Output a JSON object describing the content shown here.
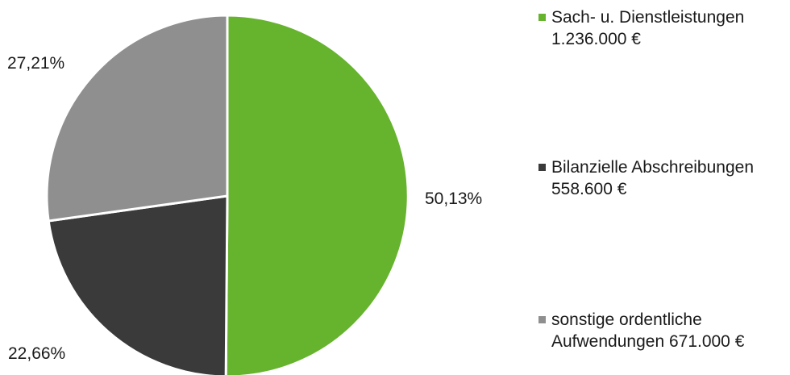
{
  "chart_data": {
    "type": "pie",
    "title": "",
    "start_angle_deg": 0,
    "direction": "clockwise",
    "colors": {
      "slice_1": "#66b32e",
      "slice_2": "#3a3a3a",
      "slice_3": "#8f8f8f",
      "separator": "#ffffff"
    },
    "slices": [
      {
        "label_line_1": "Sach- u. Dienstleistungen",
        "label_line_2": "1.236.000 €",
        "value": 1236000,
        "percent": 50.13,
        "percent_text": "50,13%"
      },
      {
        "label_line_1": "Bilanzielle Abschreibungen",
        "label_line_2": "558.600 €",
        "value": 558600,
        "percent": 22.66,
        "percent_text": "22,66%"
      },
      {
        "label_line_1": "sonstige ordentliche",
        "label_line_2": "Aufwendungen  671.000 €",
        "value": 671000,
        "percent": 27.21,
        "percent_text": "27,21%"
      }
    ],
    "legend_position": "right"
  }
}
